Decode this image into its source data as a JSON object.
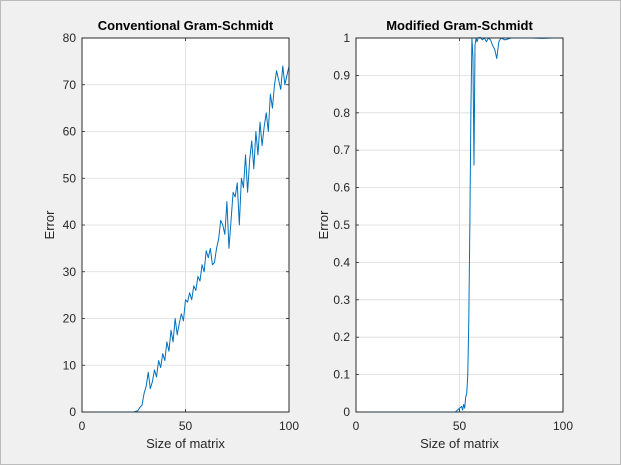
{
  "window": {
    "background": "#f0f0f0"
  },
  "colors": {
    "series": "#0072bd",
    "axes": "#262626",
    "grid": "#dcdcdc"
  },
  "chart_data": [
    {
      "type": "line",
      "title": "Conventional Gram-Schmidt",
      "xlabel": "Size of matrix",
      "ylabel": "Error",
      "xlim": [
        0,
        100
      ],
      "ylim": [
        0,
        80
      ],
      "xticks": [
        0,
        50,
        100
      ],
      "yticks": [
        0,
        10,
        20,
        30,
        40,
        50,
        60,
        70,
        80
      ],
      "grid": true,
      "series": [
        {
          "x": [
            5,
            10,
            15,
            20,
            25,
            27,
            28,
            29,
            30,
            31,
            32,
            33,
            34,
            35,
            36,
            37,
            38,
            39,
            40,
            41,
            42,
            43,
            44,
            45,
            46,
            47,
            48,
            49,
            50,
            51,
            52,
            53,
            54,
            55,
            56,
            57,
            58,
            59,
            60,
            61,
            62,
            63,
            64,
            65,
            66,
            67,
            68,
            69,
            70,
            71,
            72,
            73,
            74,
            75,
            76,
            77,
            78,
            79,
            80,
            81,
            82,
            83,
            84,
            85,
            86,
            87,
            88,
            89,
            90,
            91,
            92,
            93,
            94,
            95,
            96,
            97,
            98,
            99,
            100
          ],
          "y": [
            0,
            0,
            0,
            0,
            0,
            0.3,
            1,
            1.5,
            4,
            5.5,
            8.5,
            5,
            6.5,
            9,
            7.5,
            11,
            9.5,
            12.5,
            11,
            15,
            13,
            17.5,
            15,
            20,
            16.5,
            19,
            21,
            19.5,
            24,
            23.5,
            25.5,
            24,
            27,
            26,
            29,
            28,
            31.5,
            30,
            34.5,
            33,
            35,
            31.5,
            32,
            35,
            37,
            41,
            40,
            38,
            45,
            35,
            41,
            47,
            46,
            49,
            40,
            50,
            48,
            55,
            47,
            54,
            58,
            52,
            60,
            55,
            62,
            57,
            61,
            64,
            60,
            68,
            65,
            70,
            73,
            71,
            69,
            74,
            70,
            72,
            74
          ]
        }
      ]
    },
    {
      "type": "line",
      "title": "Modified Gram-Schmidt",
      "xlabel": "Size of matrix",
      "ylabel": "Error",
      "xlim": [
        0,
        100
      ],
      "ylim": [
        0,
        1
      ],
      "xticks": [
        0,
        50,
        100
      ],
      "yticks": [
        0,
        0.1,
        0.2,
        0.3,
        0.4,
        0.5,
        0.6,
        0.7,
        0.8,
        0.9,
        1
      ],
      "grid": true,
      "series": [
        {
          "x": [
            5,
            10,
            20,
            30,
            40,
            45,
            48,
            49,
            50,
            51,
            51.5,
            52,
            52.5,
            53,
            53.5,
            54,
            54.5,
            55,
            55.5,
            56,
            56.5,
            57,
            57.5,
            58,
            58.5,
            59,
            60,
            61,
            62,
            63,
            64,
            65,
            66,
            67,
            68,
            69,
            70,
            72,
            75,
            80,
            85,
            90,
            95,
            100
          ],
          "y": [
            0,
            0,
            0,
            0,
            0,
            0,
            0,
            0.005,
            0.01,
            0.015,
            0.005,
            0.02,
            0.01,
            0.04,
            0.05,
            0.1,
            0.25,
            0.5,
            0.8,
            1,
            0.95,
            0.66,
            0.98,
            1,
            0.99,
            1,
            1.005,
            0.995,
            1,
            0.99,
            1,
            0.995,
            0.98,
            0.97,
            0.945,
            0.99,
            1,
            0.995,
            1,
            1,
            1,
            0.999,
            1,
            1
          ]
        }
      ]
    }
  ]
}
